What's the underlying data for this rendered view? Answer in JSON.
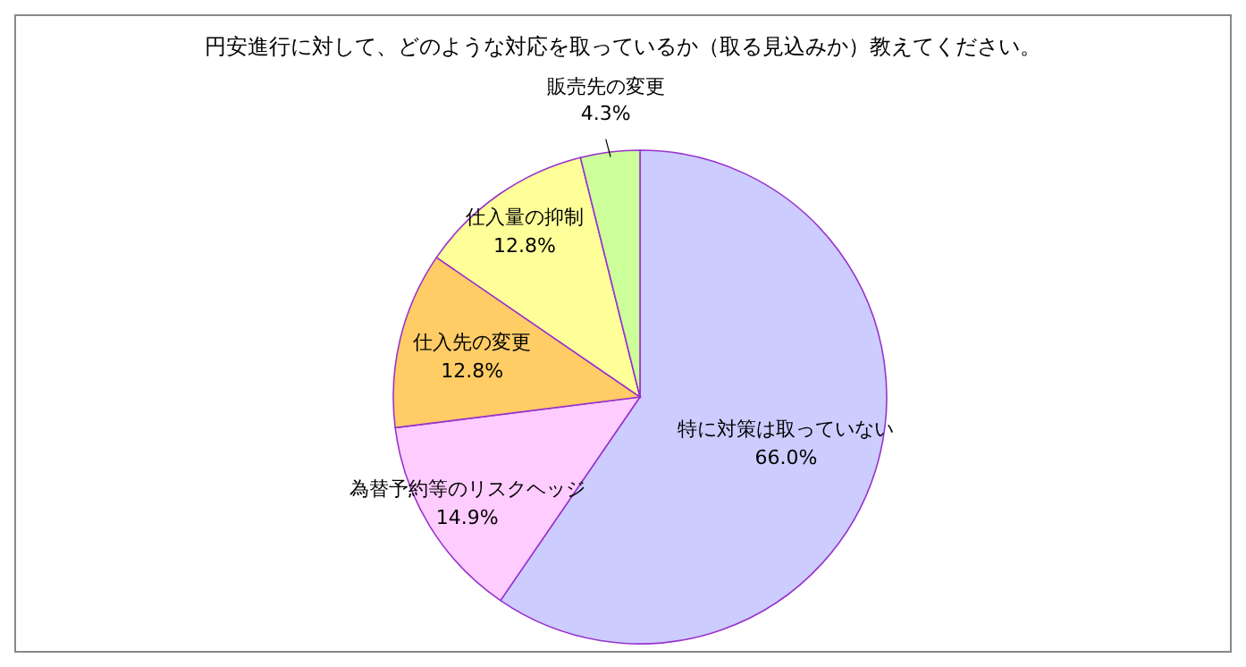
{
  "chart_data": {
    "type": "pie",
    "title": "円安進行に対して、どのような対応を取っているか（取る見込みか）教えてください。",
    "categories": [
      "特に対策は取っていない",
      "為替予約等のリスクヘッジ",
      "仕入先の変更",
      "仕入量の抑制",
      "販売先の変更"
    ],
    "values": [
      66.0,
      14.9,
      12.8,
      12.8,
      4.3
    ],
    "colors": [
      "#ccccff",
      "#ffccff",
      "#ffcc66",
      "#ffff99",
      "#ccff99"
    ],
    "value_labels": [
      "66.0%",
      "14.9%",
      "12.8%",
      "12.8%",
      "4.3%"
    ]
  }
}
